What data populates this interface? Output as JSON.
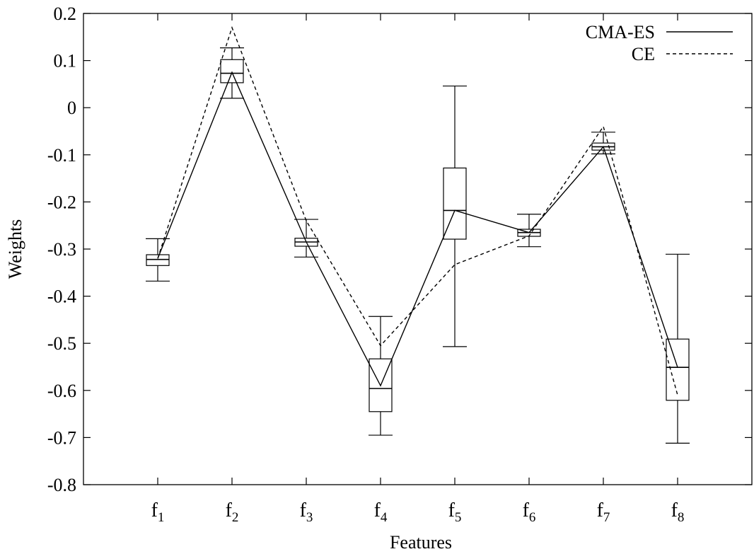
{
  "chart_data": {
    "type": "boxplot-line",
    "xlabel": "Features",
    "ylabel": "Weights",
    "ylim": [
      -0.8,
      0.2
    ],
    "yticks": [
      0.2,
      0.1,
      0,
      -0.1,
      -0.2,
      -0.3,
      -0.4,
      -0.5,
      -0.6,
      -0.7,
      -0.8
    ],
    "ytick_labels": [
      "0.2",
      "0.1",
      "0",
      "-0.1",
      "-0.2",
      "-0.3",
      "-0.4",
      "-0.5",
      "-0.6",
      "-0.7",
      "-0.8"
    ],
    "categories": [
      {
        "base": "f",
        "sub": "1"
      },
      {
        "base": "f",
        "sub": "2"
      },
      {
        "base": "f",
        "sub": "3"
      },
      {
        "base": "f",
        "sub": "4"
      },
      {
        "base": "f",
        "sub": "5"
      },
      {
        "base": "f",
        "sub": "6"
      },
      {
        "base": "f",
        "sub": "7"
      },
      {
        "base": "f",
        "sub": "8"
      }
    ],
    "boxes": [
      {
        "whisker_low": -0.368,
        "q1": -0.335,
        "median": -0.322,
        "q3": -0.312,
        "whisker_high": -0.278
      },
      {
        "whisker_low": 0.02,
        "q1": 0.053,
        "median": 0.073,
        "q3": 0.102,
        "whisker_high": 0.127
      },
      {
        "whisker_low": -0.317,
        "q1": -0.294,
        "median": -0.285,
        "q3": -0.277,
        "whisker_high": -0.237
      },
      {
        "whisker_low": -0.695,
        "q1": -0.645,
        "median": -0.596,
        "q3": -0.533,
        "whisker_high": -0.443
      },
      {
        "whisker_low": -0.507,
        "q1": -0.279,
        "median": -0.218,
        "q3": -0.128,
        "whisker_high": 0.046
      },
      {
        "whisker_low": -0.295,
        "q1": -0.273,
        "median": -0.265,
        "q3": -0.258,
        "whisker_high": -0.226
      },
      {
        "whisker_low": -0.098,
        "q1": -0.09,
        "median": -0.083,
        "q3": -0.075,
        "whisker_high": -0.052
      },
      {
        "whisker_low": -0.712,
        "q1": -0.621,
        "median": -0.551,
        "q3": -0.491,
        "whisker_high": -0.311
      }
    ],
    "series": [
      {
        "name": "CMA-ES",
        "style": "solid",
        "values": [
          -0.32,
          0.075,
          -0.285,
          -0.59,
          -0.218,
          -0.265,
          -0.083,
          -0.551
        ]
      },
      {
        "name": "CE",
        "style": "dashed",
        "values": [
          -0.32,
          0.17,
          -0.24,
          -0.505,
          -0.333,
          -0.272,
          -0.04,
          -0.61
        ]
      }
    ],
    "legend_position": "top-right",
    "grid": false,
    "colors": {
      "line": "#000000",
      "background": "#ffffff"
    }
  }
}
